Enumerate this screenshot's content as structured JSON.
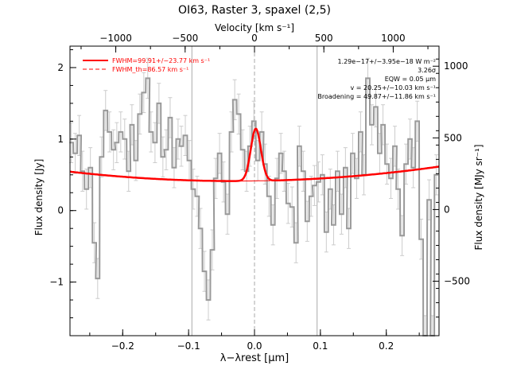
{
  "chart_data": {
    "type": "line",
    "title": "OI63, Raster 3, spaxel (2,5)",
    "xlabel": "λ−λrest [μm]",
    "ylabel": "Flux density [Jy]",
    "top_axis_label": "Velocity [km s⁻¹]",
    "right_axis_label": "Flux density [MJy sr⁻¹]",
    "xlim": [
      -0.28,
      0.28
    ],
    "ylim": [
      -1.75,
      2.3
    ],
    "x_ticks": [
      -0.2,
      -0.1,
      0.0,
      0.1,
      0.2
    ],
    "x_tick_labels": [
      "−0.2",
      "−0.1",
      "0.0",
      "0.1",
      "0.2"
    ],
    "y_ticks": [
      -1,
      0,
      1,
      2
    ],
    "y_tick_labels": [
      "−1",
      "0",
      "1",
      "2"
    ],
    "top_ticks_kms": [
      -1000,
      -500,
      0,
      500,
      1000
    ],
    "top_tick_labels": [
      "−1000",
      "−500",
      "0",
      "500",
      "1000"
    ],
    "top_lim_kms": [
      -1330,
      1330
    ],
    "right_ticks": [
      -500,
      0,
      500,
      1000
    ],
    "right_tick_labels": [
      "−500",
      "0",
      "500",
      "1000"
    ],
    "right_lim": [
      -880,
      1140
    ],
    "reference_lines_um": [
      -0.095,
      0.0,
      0.095
    ],
    "legend": {
      "position": "top-left",
      "entries": [
        {
          "label": "FWHM=99.91+/−23.77 km s⁻¹",
          "style": "solid",
          "color": "#ff0000"
        },
        {
          "label": "FWHM_th=86.57 km s⁻¹",
          "style": "dashed",
          "color": "#ff0000"
        }
      ]
    },
    "annotations": [
      "1.29e−17+/−3.95e−18 W m⁻²",
      "3.26σ",
      "EQW = 0.05 μm",
      "v = 20.25+/−10.03 km s⁻¹",
      "Broadening = 49.87+/−11.86 km s⁻¹"
    ],
    "colors": {
      "data": "#999999",
      "fit": "#ff0000",
      "reference": "#aaaaaa"
    },
    "series": [
      {
        "name": "spectrum",
        "x": [
          -0.278,
          -0.272,
          -0.266,
          -0.261,
          -0.255,
          -0.249,
          -0.243,
          -0.238,
          -0.232,
          -0.226,
          -0.22,
          -0.214,
          -0.209,
          -0.203,
          -0.197,
          -0.191,
          -0.186,
          -0.18,
          -0.174,
          -0.168,
          -0.162,
          -0.157,
          -0.151,
          -0.145,
          -0.139,
          -0.134,
          -0.128,
          -0.122,
          -0.116,
          -0.111,
          -0.105,
          -0.099,
          -0.093,
          -0.087,
          -0.082,
          -0.076,
          -0.07,
          -0.064,
          -0.059,
          -0.053,
          -0.047,
          -0.041,
          -0.035,
          -0.03,
          -0.024,
          -0.018,
          -0.012,
          -0.007,
          -0.001,
          0.005,
          0.011,
          0.016,
          0.022,
          0.028,
          0.034,
          0.04,
          0.045,
          0.051,
          0.057,
          0.063,
          0.068,
          0.074,
          0.08,
          0.086,
          0.091,
          0.097,
          0.103,
          0.109,
          0.115,
          0.12,
          0.126,
          0.132,
          0.138,
          0.143,
          0.149,
          0.155,
          0.161,
          0.166,
          0.172,
          0.178,
          0.184,
          0.19,
          0.195,
          0.201,
          0.207,
          0.213,
          0.218,
          0.224,
          0.23,
          0.236,
          0.241,
          0.247,
          0.253,
          0.259,
          0.265,
          0.27,
          0.276
        ],
        "y": [
          0.95,
          0.8,
          1.05,
          0.55,
          0.3,
          0.6,
          -0.45,
          -0.95,
          0.75,
          1.4,
          1.1,
          0.85,
          0.95,
          1.1,
          1.0,
          0.55,
          1.2,
          0.7,
          1.35,
          1.65,
          1.85,
          1.1,
          0.95,
          1.5,
          0.75,
          0.85,
          1.3,
          0.6,
          1.0,
          0.9,
          1.05,
          0.7,
          0.3,
          0.2,
          -0.25,
          -0.85,
          -1.25,
          -0.55,
          0.45,
          0.8,
          0.4,
          -0.05,
          1.1,
          1.55,
          1.35,
          0.85,
          0.55,
          0.9,
          1.25,
          0.7,
          1.1,
          0.65,
          0.2,
          -0.2,
          0.45,
          0.8,
          0.55,
          0.1,
          0.05,
          -0.45,
          0.9,
          0.55,
          -0.15,
          0.2,
          0.35,
          0.4,
          0.5,
          -0.3,
          0.3,
          -0.2,
          0.55,
          -0.05,
          0.6,
          -0.25,
          0.8,
          0.45,
          1.1,
          0.5,
          1.85,
          1.2,
          1.45,
          0.8,
          1.2,
          0.65,
          0.45,
          0.9,
          0.3,
          -0.35,
          0.65,
          1.0,
          0.6,
          1.25,
          -0.4,
          -1.75,
          0.15,
          -1.75,
          0.5
        ],
        "yerr": 0.28
      },
      {
        "name": "fit",
        "model": "quadratic continuum + gaussian",
        "continuum": {
          "c0": 0.415,
          "c1": 0.127,
          "c2": 2.1
        },
        "gaussian": {
          "amplitude": 0.73,
          "center": 0.002,
          "sigma": 0.0077
        }
      }
    ]
  }
}
